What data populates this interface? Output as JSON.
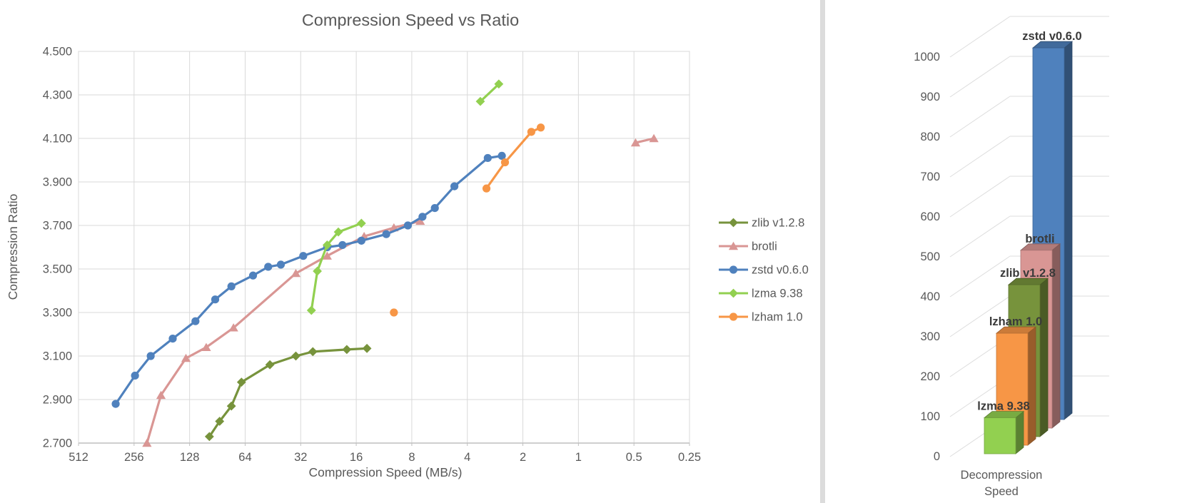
{
  "page": {
    "background": "#FFFFFF",
    "divider_color": "#DCDCDC",
    "axis_text_color": "#595959",
    "grid_color": "#D9D9D9",
    "grid_color_right": "#DDDDDD",
    "axis_line_color": "#BFBFBF",
    "bar_label_color": "#3A3A3A"
  },
  "chart_data": [
    {
      "id": "scatter",
      "type": "line",
      "title": "Compression Speed vs Ratio",
      "xlabel": "Compression Speed (MB/s)",
      "ylabel": "Compression Ratio",
      "x_scale": "log2_reversed",
      "xlim": [
        512,
        0.25
      ],
      "ylim": [
        2.7,
        4.5
      ],
      "grid": true,
      "legend_position": "right",
      "x_ticks": [
        "512",
        "256",
        "128",
        "64",
        "32",
        "16",
        "8",
        "4",
        "2",
        "1",
        "0.5",
        "0.25"
      ],
      "y_ticks": [
        "2.700",
        "2.900",
        "3.100",
        "3.300",
        "3.500",
        "3.700",
        "3.900",
        "4.100",
        "4.300",
        "4.500"
      ],
      "series": [
        {
          "name": "zlib v1.2.8",
          "color": "#77933C",
          "marker": "diamond",
          "segments": [
            [
              [
                100,
                2.73
              ],
              [
                88,
                2.8
              ],
              [
                76,
                2.87
              ],
              [
                67,
                2.98
              ],
              [
                47,
                3.06
              ],
              [
                34,
                3.1
              ],
              [
                27.5,
                3.12
              ],
              [
                18,
                3.13
              ],
              [
                14,
                3.135
              ]
            ]
          ]
        },
        {
          "name": "brotli",
          "color": "#D99694",
          "marker": "triangle",
          "segments": [
            [
              [
                218,
                2.7
              ],
              [
                183,
                2.92
              ],
              [
                134,
                3.09
              ],
              [
                104,
                3.14
              ],
              [
                74,
                3.23
              ],
              [
                34,
                3.48
              ],
              [
                23,
                3.56
              ],
              [
                14.5,
                3.65
              ],
              [
                10,
                3.69
              ],
              [
                7.2,
                3.72
              ]
            ],
            [
              [
                0.49,
                4.08
              ],
              [
                0.39,
                4.1
              ]
            ]
          ]
        },
        {
          "name": "zstd v0.6.0",
          "color": "#4F81BD",
          "marker": "circle",
          "segments": [
            [
              [
                322,
                2.88
              ],
              [
                253,
                3.01
              ],
              [
                208,
                3.1
              ],
              [
                158,
                3.18
              ],
              [
                119,
                3.26
              ],
              [
                93,
                3.36
              ],
              [
                76,
                3.42
              ],
              [
                58,
                3.47
              ],
              [
                48,
                3.51
              ],
              [
                41,
                3.52
              ],
              [
                31,
                3.56
              ],
              [
                23,
                3.6
              ],
              [
                19,
                3.61
              ],
              [
                15,
                3.63
              ],
              [
                11,
                3.66
              ],
              [
                8.4,
                3.7
              ],
              [
                7.0,
                3.74
              ],
              [
                6.0,
                3.78
              ],
              [
                4.7,
                3.88
              ],
              [
                3.1,
                4.01
              ],
              [
                2.6,
                4.02
              ]
            ]
          ]
        },
        {
          "name": "lzma 9.38",
          "color": "#92D050",
          "marker": "diamond",
          "segments": [
            [
              [
                28,
                3.31
              ],
              [
                26,
                3.49
              ],
              [
                23,
                3.61
              ],
              [
                20,
                3.67
              ],
              [
                15,
                3.71
              ]
            ],
            [
              [
                3.4,
                4.27
              ],
              [
                2.7,
                4.35
              ]
            ]
          ]
        },
        {
          "name": "lzham 1.0",
          "color": "#F79646",
          "marker": "circle",
          "segments": [
            [
              [
                10,
                3.3
              ]
            ],
            [
              [
                3.15,
                3.87
              ],
              [
                2.5,
                3.99
              ],
              [
                1.8,
                4.13
              ],
              [
                1.6,
                4.15
              ]
            ]
          ]
        }
      ]
    },
    {
      "id": "bars",
      "type": "bar",
      "variant": "3d",
      "category": "Decompression Speed",
      "category_label_lines": [
        "Decompression",
        "Speed"
      ],
      "ylim": [
        0,
        1000
      ],
      "y_tick_step": 100,
      "y_ticks": [
        "0",
        "100",
        "200",
        "300",
        "400",
        "500",
        "600",
        "700",
        "800",
        "900",
        "1000"
      ],
      "series": [
        {
          "name": "lzma 9.38",
          "value": 90,
          "color": "#92D050"
        },
        {
          "name": "lzham 1.0",
          "value": 280,
          "color": "#F79646"
        },
        {
          "name": "zlib v1.2.8",
          "value": 380,
          "color": "#77933C"
        },
        {
          "name": "brotli",
          "value": 445,
          "color": "#D99694"
        },
        {
          "name": "zstd v0.6.0",
          "value": 930,
          "color": "#4F81BD"
        }
      ]
    }
  ]
}
